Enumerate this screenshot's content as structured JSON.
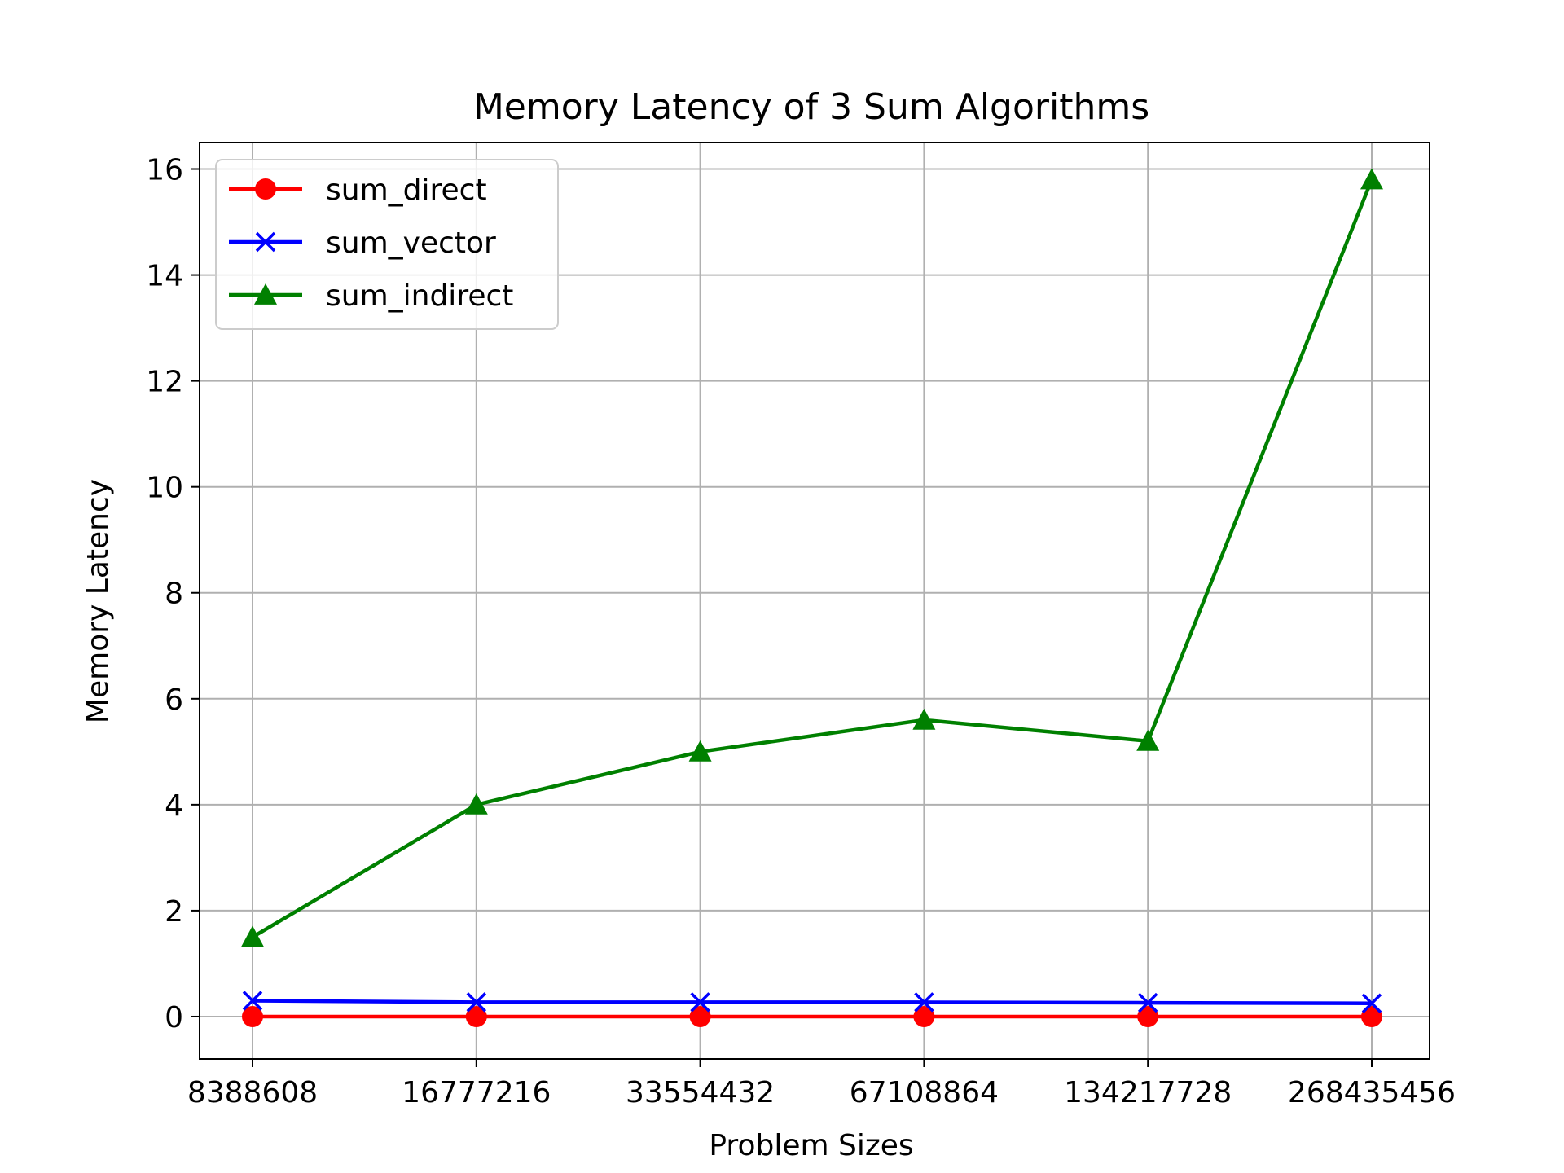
{
  "chart_data": {
    "type": "line",
    "title": "Memory Latency of 3 Sum Algorithms",
    "xlabel": "Problem Sizes",
    "ylabel": "Memory Latency",
    "categories": [
      "8388608",
      "16777216",
      "33554432",
      "67108864",
      "134217728",
      "268435456"
    ],
    "ylim": [
      -0.8,
      16.5
    ],
    "yticks": [
      0,
      2,
      4,
      6,
      8,
      10,
      12,
      14,
      16
    ],
    "grid": true,
    "legend_position": "top-left",
    "series": [
      {
        "name": "sum_direct",
        "color": "#ff0000",
        "marker": "circle",
        "values": [
          0.0,
          0.0,
          0.0,
          0.0,
          0.0,
          0.0
        ]
      },
      {
        "name": "sum_vector",
        "color": "#0000ff",
        "marker": "x",
        "values": [
          0.3,
          0.27,
          0.27,
          0.27,
          0.26,
          0.25
        ]
      },
      {
        "name": "sum_indirect",
        "color": "#008000",
        "marker": "triangle",
        "values": [
          1.5,
          4.0,
          5.0,
          5.6,
          5.2,
          15.8
        ]
      }
    ]
  }
}
